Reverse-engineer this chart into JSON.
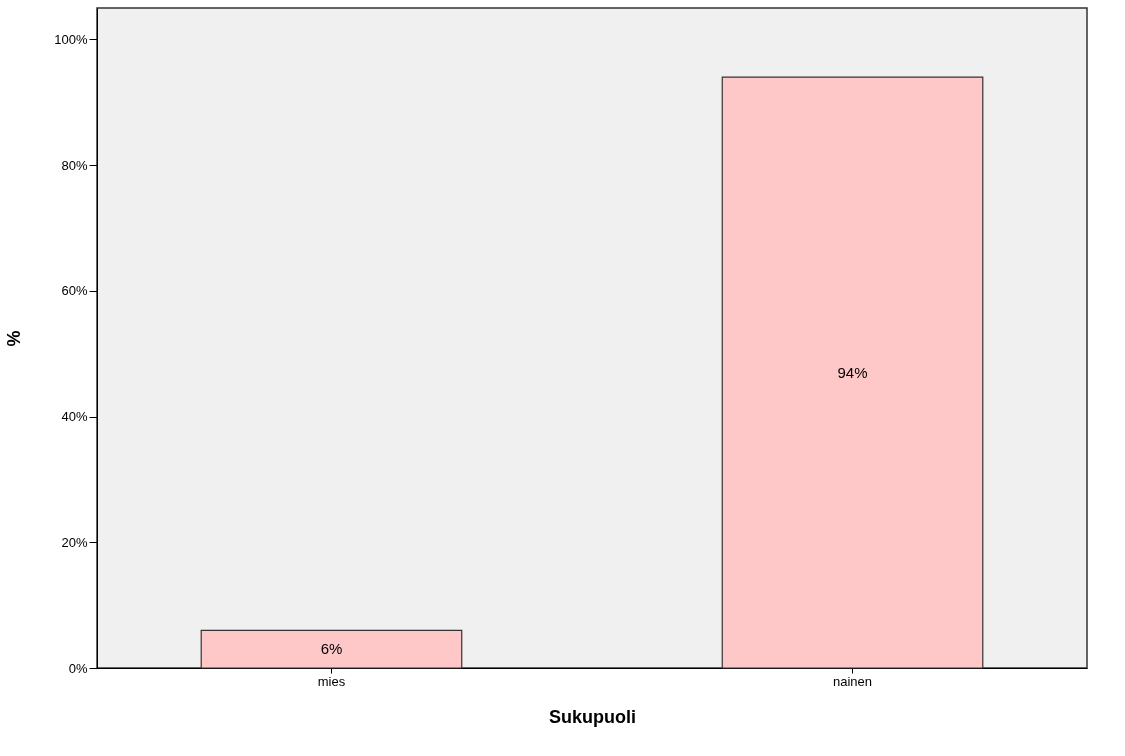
{
  "chart_data": {
    "type": "bar",
    "xlabel": "Sukupuoli",
    "ylabel": "%",
    "categories": [
      "mies",
      "nainen"
    ],
    "values": [
      6,
      94
    ],
    "value_labels": [
      "6%",
      "94%"
    ],
    "color": "#ffc8c8",
    "ylim": [
      0,
      105
    ],
    "yticks": [
      {
        "value": 0,
        "label": "0%"
      },
      {
        "value": 20,
        "label": "20%"
      },
      {
        "value": 40,
        "label": "40%"
      },
      {
        "value": 60,
        "label": "60%"
      },
      {
        "value": 80,
        "label": "80%"
      },
      {
        "value": 100,
        "label": "100%"
      }
    ],
    "grid": false
  }
}
